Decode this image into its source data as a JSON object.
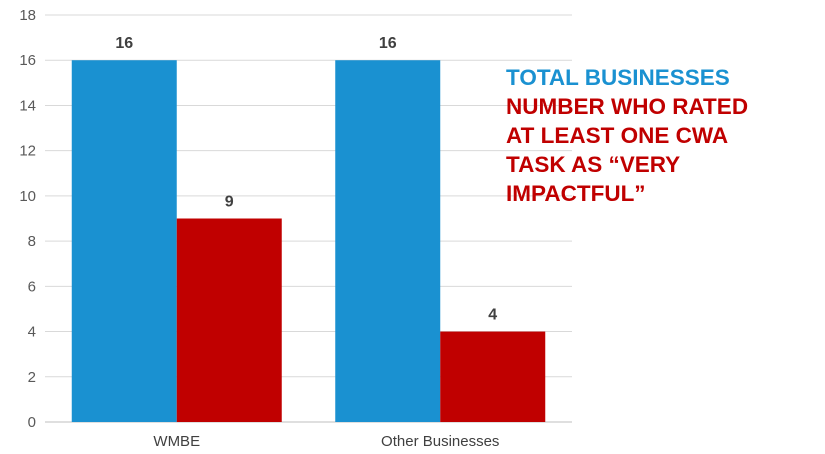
{
  "chart_data": {
    "type": "bar",
    "categories": [
      "WMBE",
      "Other Businesses"
    ],
    "series": [
      {
        "name": "TOTAL BUSINESSES",
        "values": [
          16,
          16
        ],
        "color": "#1a91d1"
      },
      {
        "name": "NUMBER WHO RATED AT LEAST ONE CWA TASK AS “VERY IMPACTFUL”",
        "values": [
          9,
          4
        ],
        "color": "#c00000"
      }
    ],
    "ylim": [
      0,
      18
    ],
    "yticks": [
      "0",
      "2",
      "4",
      "6",
      "8",
      "10",
      "12",
      "14",
      "16",
      "18"
    ],
    "grid": true,
    "legend_position": "right",
    "legend_lines": {
      "series0": [
        "TOTAL BUSINESSES"
      ],
      "series1": [
        "NUMBER WHO RATED",
        "AT LEAST ONE CWA",
        "TASK AS “VERY",
        "IMPACTFUL”"
      ]
    }
  }
}
